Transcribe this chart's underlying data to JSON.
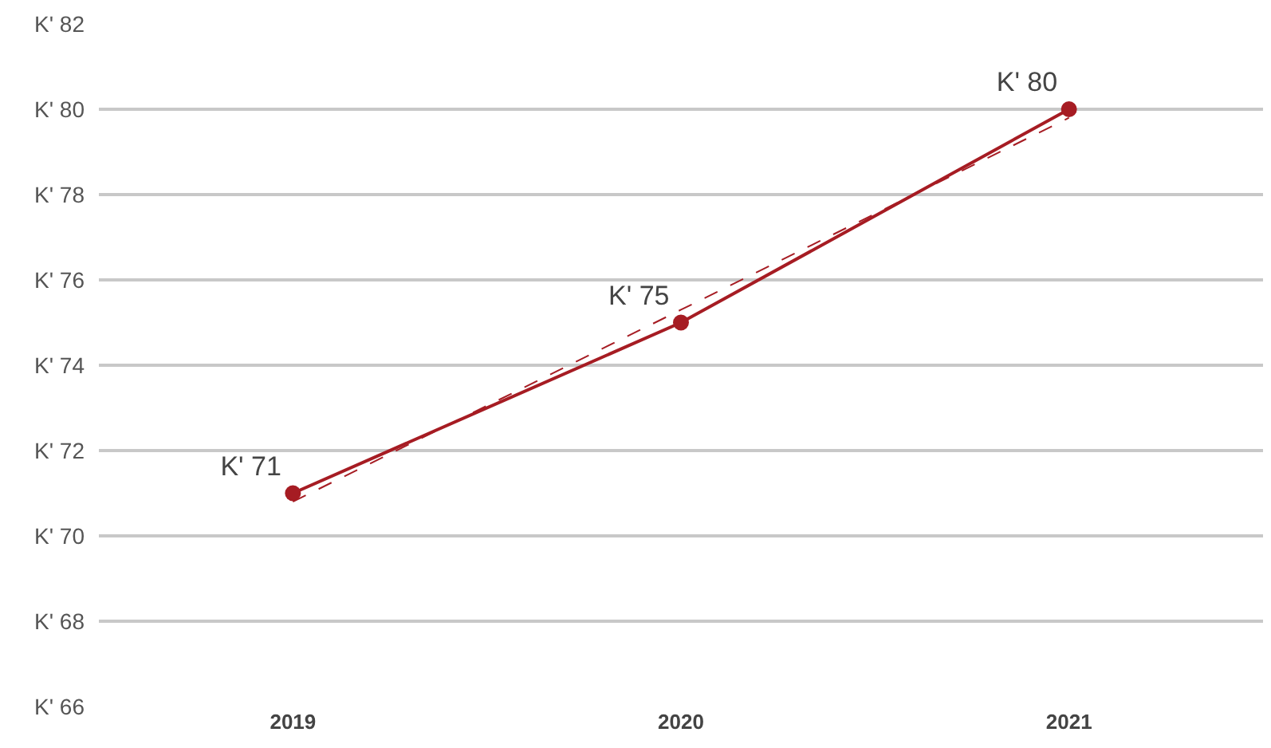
{
  "chart_data": {
    "type": "line",
    "categories": [
      "2019",
      "2020",
      "2021"
    ],
    "series": [
      {
        "color": "#a61c23",
        "values": [
          71,
          75,
          80
        ],
        "value_labels": [
          "K' 71",
          "K' 75",
          "K' 80"
        ],
        "marker": "circle",
        "line_style": "solid"
      },
      {
        "color": "#a61c23",
        "values": [
          70.8,
          75.3,
          79.8
        ],
        "marker": "none",
        "line_style": "dashed"
      }
    ],
    "ylim": [
      66,
      82
    ],
    "yticks": [
      {
        "value": 66,
        "label": "K' 66"
      },
      {
        "value": 68,
        "label": "K' 68"
      },
      {
        "value": 70,
        "label": "K' 70"
      },
      {
        "value": 72,
        "label": "K' 72"
      },
      {
        "value": 74,
        "label": "K' 74"
      },
      {
        "value": 76,
        "label": "K' 76"
      },
      {
        "value": 78,
        "label": "K' 78"
      },
      {
        "value": 80,
        "label": "K' 80"
      },
      {
        "value": 82,
        "label": "K' 82"
      }
    ],
    "grid": "y"
  }
}
